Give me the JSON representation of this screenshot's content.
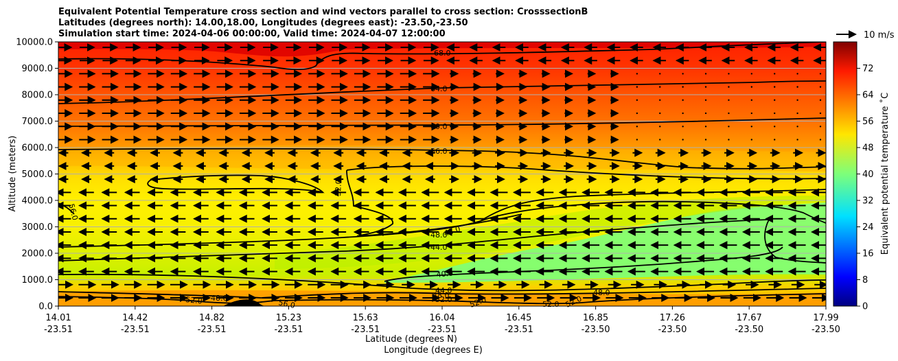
{
  "chart_data": {
    "type": "contour",
    "title": [
      "Equivalent Potential Temperature cross section and wind vectors parallel to cross section: CrosssectionB",
      "Latitudes (degrees north): 14.00,18.00, Longitudes (degrees east): -23.50,-23.50",
      "Simulation start time: 2024-04-06 00:00:00, Valid time: 2024-04-07 12:00:00"
    ],
    "ylabel": "Altitude (meters)",
    "xlabel": "Latitude (degrees N)",
    "xlabel2": "Longitude (degrees E)",
    "ylim": [
      0,
      10000
    ],
    "yticks": [
      "0.0",
      "1000.0",
      "2000.0",
      "3000.0",
      "4000.0",
      "5000.0",
      "6000.0",
      "7000.0",
      "8000.0",
      "9000.0",
      "10000.0"
    ],
    "xticks_lat": [
      "14.01",
      "14.42",
      "14.82",
      "15.23",
      "15.63",
      "16.04",
      "16.45",
      "16.85",
      "17.26",
      "17.67",
      "17.99"
    ],
    "xticks_lon": [
      "-23.51",
      "-23.51",
      "-23.51",
      "-23.51",
      "-23.51",
      "-23.51",
      "-23.51",
      "-23.50",
      "-23.50",
      "-23.50",
      "-23.50"
    ],
    "grid": "horizontal",
    "colorbar": {
      "label": "Equivalent potential temperature ˚C",
      "ticks": [
        "0",
        "8",
        "16",
        "24",
        "32",
        "40",
        "48",
        "56",
        "64",
        "72"
      ],
      "range": [
        0,
        80
      ],
      "colormap": "jet"
    },
    "quiver_key": "10 m/s",
    "contour_labels": [
      "68.0",
      "64.0",
      "60.0",
      "56.0",
      "52.0",
      "56.0",
      "48.0",
      "48.0",
      "44.0",
      "40.0",
      "44.0",
      "48.0",
      "52.0",
      "52.0",
      "48.0",
      "56.0",
      "52.0",
      "52.0",
      "52.0",
      "48.0"
    ]
  }
}
